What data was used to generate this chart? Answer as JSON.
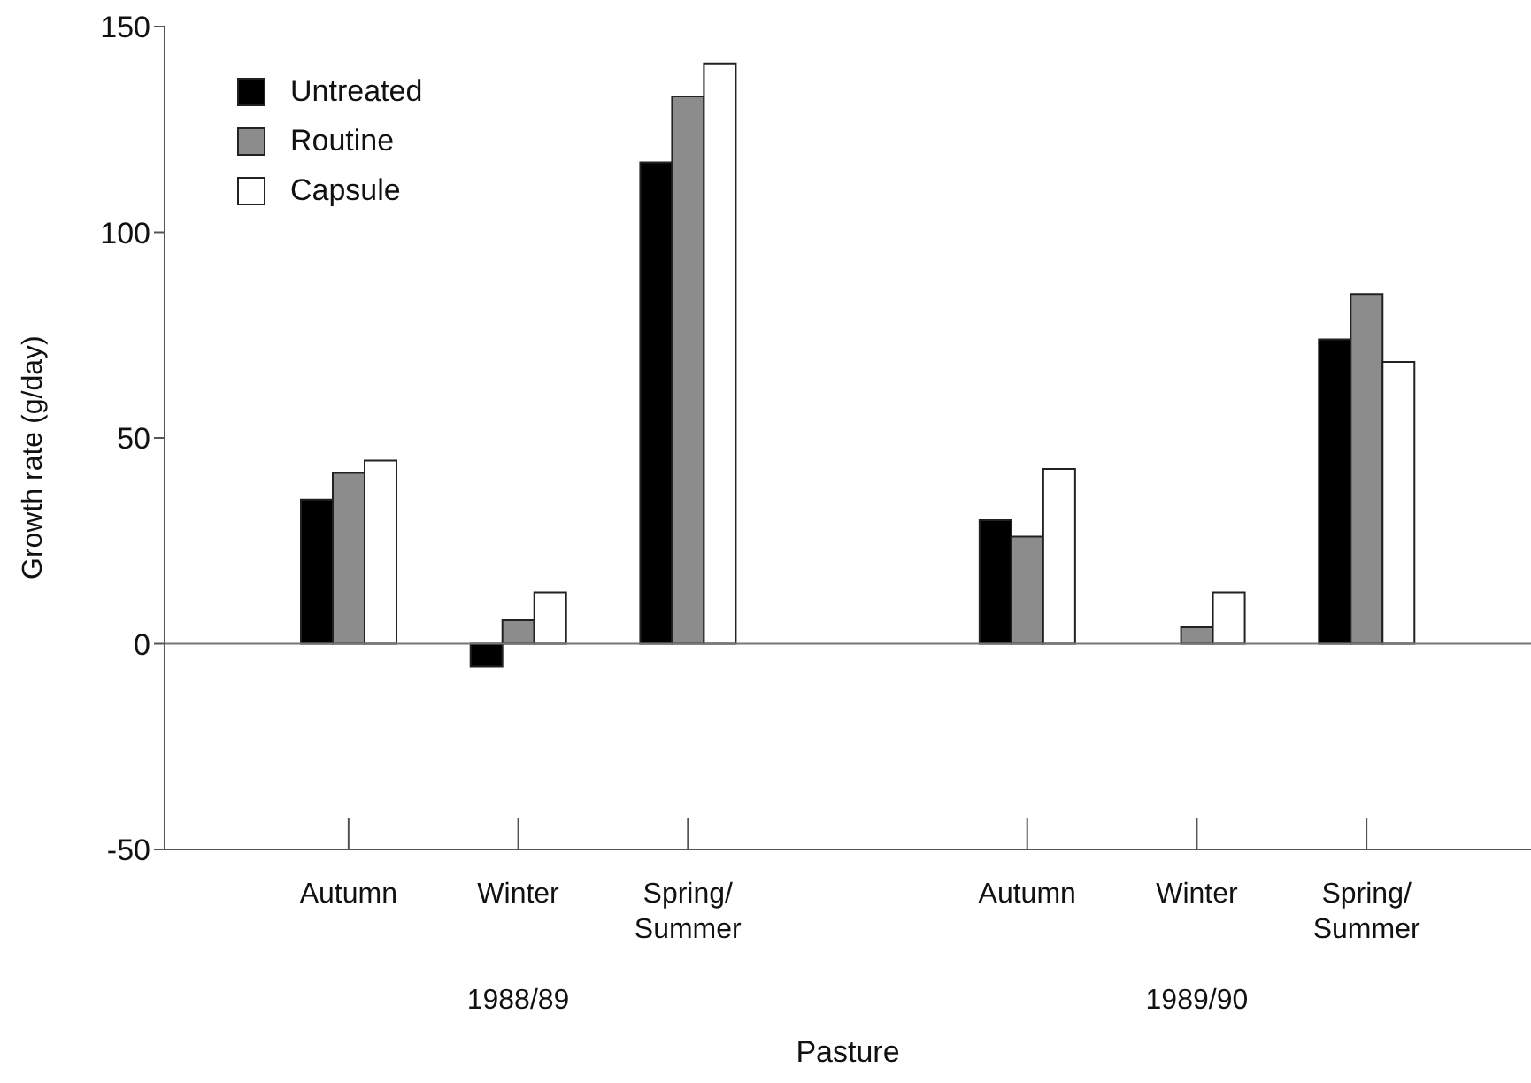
{
  "chart_data": {
    "type": "bar",
    "xlabel": "Pasture",
    "ylabel": "Growth rate (g/day)",
    "categories": [
      "Autumn",
      "Winter",
      "Spring/Summer",
      null,
      "Autumn",
      "Winter",
      "Spring/Summer"
    ],
    "series": [
      {
        "name": "Untreated",
        "color": "#000000",
        "values": [
          35,
          -5.6,
          117,
          null,
          30,
          0,
          74
        ]
      },
      {
        "name": "Routine",
        "color": "#8c8c8c",
        "values": [
          41.5,
          5.7,
          133,
          null,
          26,
          4,
          85
        ]
      },
      {
        "name": "Capsule",
        "color": "#ffffff",
        "values": [
          44.5,
          12.5,
          141,
          null,
          42.5,
          12.5,
          68.5
        ]
      }
    ],
    "ylim": [
      -50,
      150
    ],
    "yticks": [
      -50,
      0,
      50,
      100,
      150
    ],
    "ref_lines": [
      {
        "axis": "y",
        "value": 0,
        "color": "#777777"
      }
    ],
    "annotations": [
      "1988/89",
      "1989/90"
    ],
    "legend": "top left",
    "grid": false
  }
}
